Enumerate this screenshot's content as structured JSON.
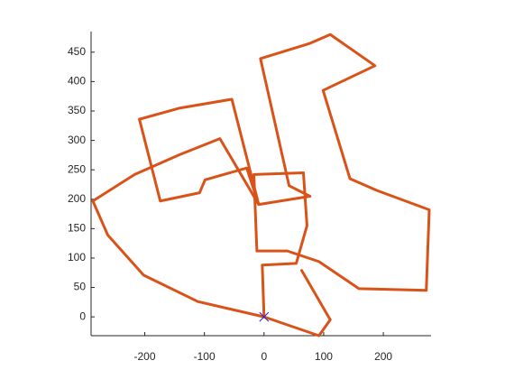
{
  "chart_data": {
    "type": "line",
    "x": [
      0,
      -3,
      54,
      72,
      66,
      -17,
      -12,
      39,
      92,
      159,
      272,
      277,
      189,
      144,
      99,
      186,
      111,
      77,
      -6,
      42,
      77,
      -9,
      -54,
      -141,
      -209,
      -174,
      -108,
      -99,
      -29,
      -9,
      -74,
      -141,
      -217,
      -287,
      -262,
      -202,
      -111,
      0,
      92,
      111,
      63
    ],
    "y": [
      0,
      88,
      91,
      155,
      245,
      242,
      112,
      112,
      94,
      48,
      45,
      182,
      215,
      235,
      385,
      427,
      480,
      465,
      439,
      223,
      205,
      191,
      370,
      355,
      336,
      197,
      211,
      233,
      253,
      191,
      303,
      276,
      242,
      197,
      139,
      71,
      26,
      0,
      -32,
      -5,
      79
    ],
    "color": "#d95319",
    "marker": {
      "x": 0,
      "y": 0,
      "color": "#2222cc"
    },
    "xlim": [
      -290,
      280
    ],
    "ylim": [
      -32,
      485
    ],
    "xticks": [
      -200,
      -100,
      0,
      100,
      200
    ],
    "yticks": [
      0,
      50,
      100,
      150,
      200,
      250,
      300,
      350,
      400,
      450
    ]
  }
}
